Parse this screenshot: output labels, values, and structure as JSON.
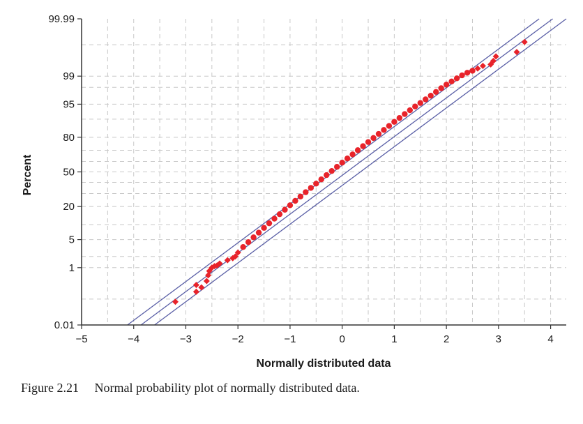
{
  "caption": {
    "label": "Figure 2.21",
    "text": "Normal probability plot of normally distributed data."
  },
  "colors": {
    "points": "#e8232a",
    "fit_lines": "#5a5fa6",
    "grid": "#c8c8c8",
    "axis": "#333333"
  },
  "chart_data": {
    "type": "scatter",
    "title": "",
    "xlabel": "Normally distributed data",
    "ylabel": "Percent",
    "xlim": [
      -5,
      4.3
    ],
    "x_ticks": [
      -5,
      -4,
      -3,
      -2,
      -1,
      0,
      1,
      2,
      3,
      4
    ],
    "x_tick_labels": [
      "−5",
      "−4",
      "−3",
      "−2",
      "−1",
      "0",
      "1",
      "2",
      "3",
      "4"
    ],
    "y_scale": "normal-probability",
    "ylim": [
      0.01,
      99.99
    ],
    "y_ticks": [
      0.01,
      1,
      5,
      20,
      50,
      80,
      95,
      99,
      99.99
    ],
    "y_tick_labels": [
      "0.01",
      "1",
      "5",
      "20",
      "50",
      "80",
      "95",
      "99",
      "99.99"
    ],
    "grid": true,
    "minor_grid": true,
    "fit_lines": {
      "center": [
        [
          -3.86,
          0.01
        ],
        [
          4.04,
          99.99
        ]
      ],
      "lower": [
        [
          -3.6,
          0.01
        ],
        [
          4.3,
          99.99
        ]
      ],
      "upper": [
        [
          -4.12,
          0.01
        ],
        [
          3.78,
          99.99
        ]
      ]
    },
    "points": {
      "x": [
        -3.2,
        -2.8,
        -2.8,
        -2.7,
        -2.6,
        -2.57,
        -2.55,
        -2.5,
        -2.45,
        -2.4,
        -2.35,
        -2.2,
        -2.1,
        -2.05,
        -2.0,
        -1.9,
        -1.8,
        -1.7,
        -1.6,
        -1.5,
        -1.4,
        -1.3,
        -1.2,
        -1.1,
        -1.0,
        -0.9,
        -0.8,
        -0.7,
        -0.6,
        -0.5,
        -0.4,
        -0.3,
        -0.2,
        -0.1,
        0.0,
        0.1,
        0.2,
        0.3,
        0.4,
        0.5,
        0.6,
        0.7,
        0.8,
        0.9,
        1.0,
        1.1,
        1.2,
        1.3,
        1.4,
        1.5,
        1.6,
        1.7,
        1.8,
        1.9,
        2.0,
        2.1,
        2.2,
        2.3,
        2.4,
        2.5,
        2.6,
        2.7,
        2.85,
        2.9,
        2.95,
        3.35,
        3.5
      ],
      "y": [
        0.08,
        0.18,
        0.3,
        0.25,
        0.4,
        0.6,
        0.8,
        1.0,
        1.1,
        1.15,
        1.3,
        1.6,
        1.8,
        2.0,
        2.5,
        3.4,
        4.4,
        5.6,
        7.0,
        8.7,
        10.6,
        12.8,
        15.2,
        17.9,
        20.9,
        24.1,
        27.5,
        31.1,
        34.9,
        38.8,
        42.8,
        46.9,
        50.9,
        54.9,
        58.9,
        62.8,
        66.5,
        70.1,
        73.4,
        76.6,
        79.5,
        82.2,
        84.6,
        86.8,
        88.8,
        90.5,
        92.0,
        93.3,
        94.4,
        95.3,
        96.1,
        96.8,
        97.4,
        97.9,
        98.3,
        98.6,
        98.85,
        99.05,
        99.2,
        99.3,
        99.4,
        99.5,
        99.55,
        99.65,
        99.75,
        99.82,
        99.92
      ]
    }
  }
}
